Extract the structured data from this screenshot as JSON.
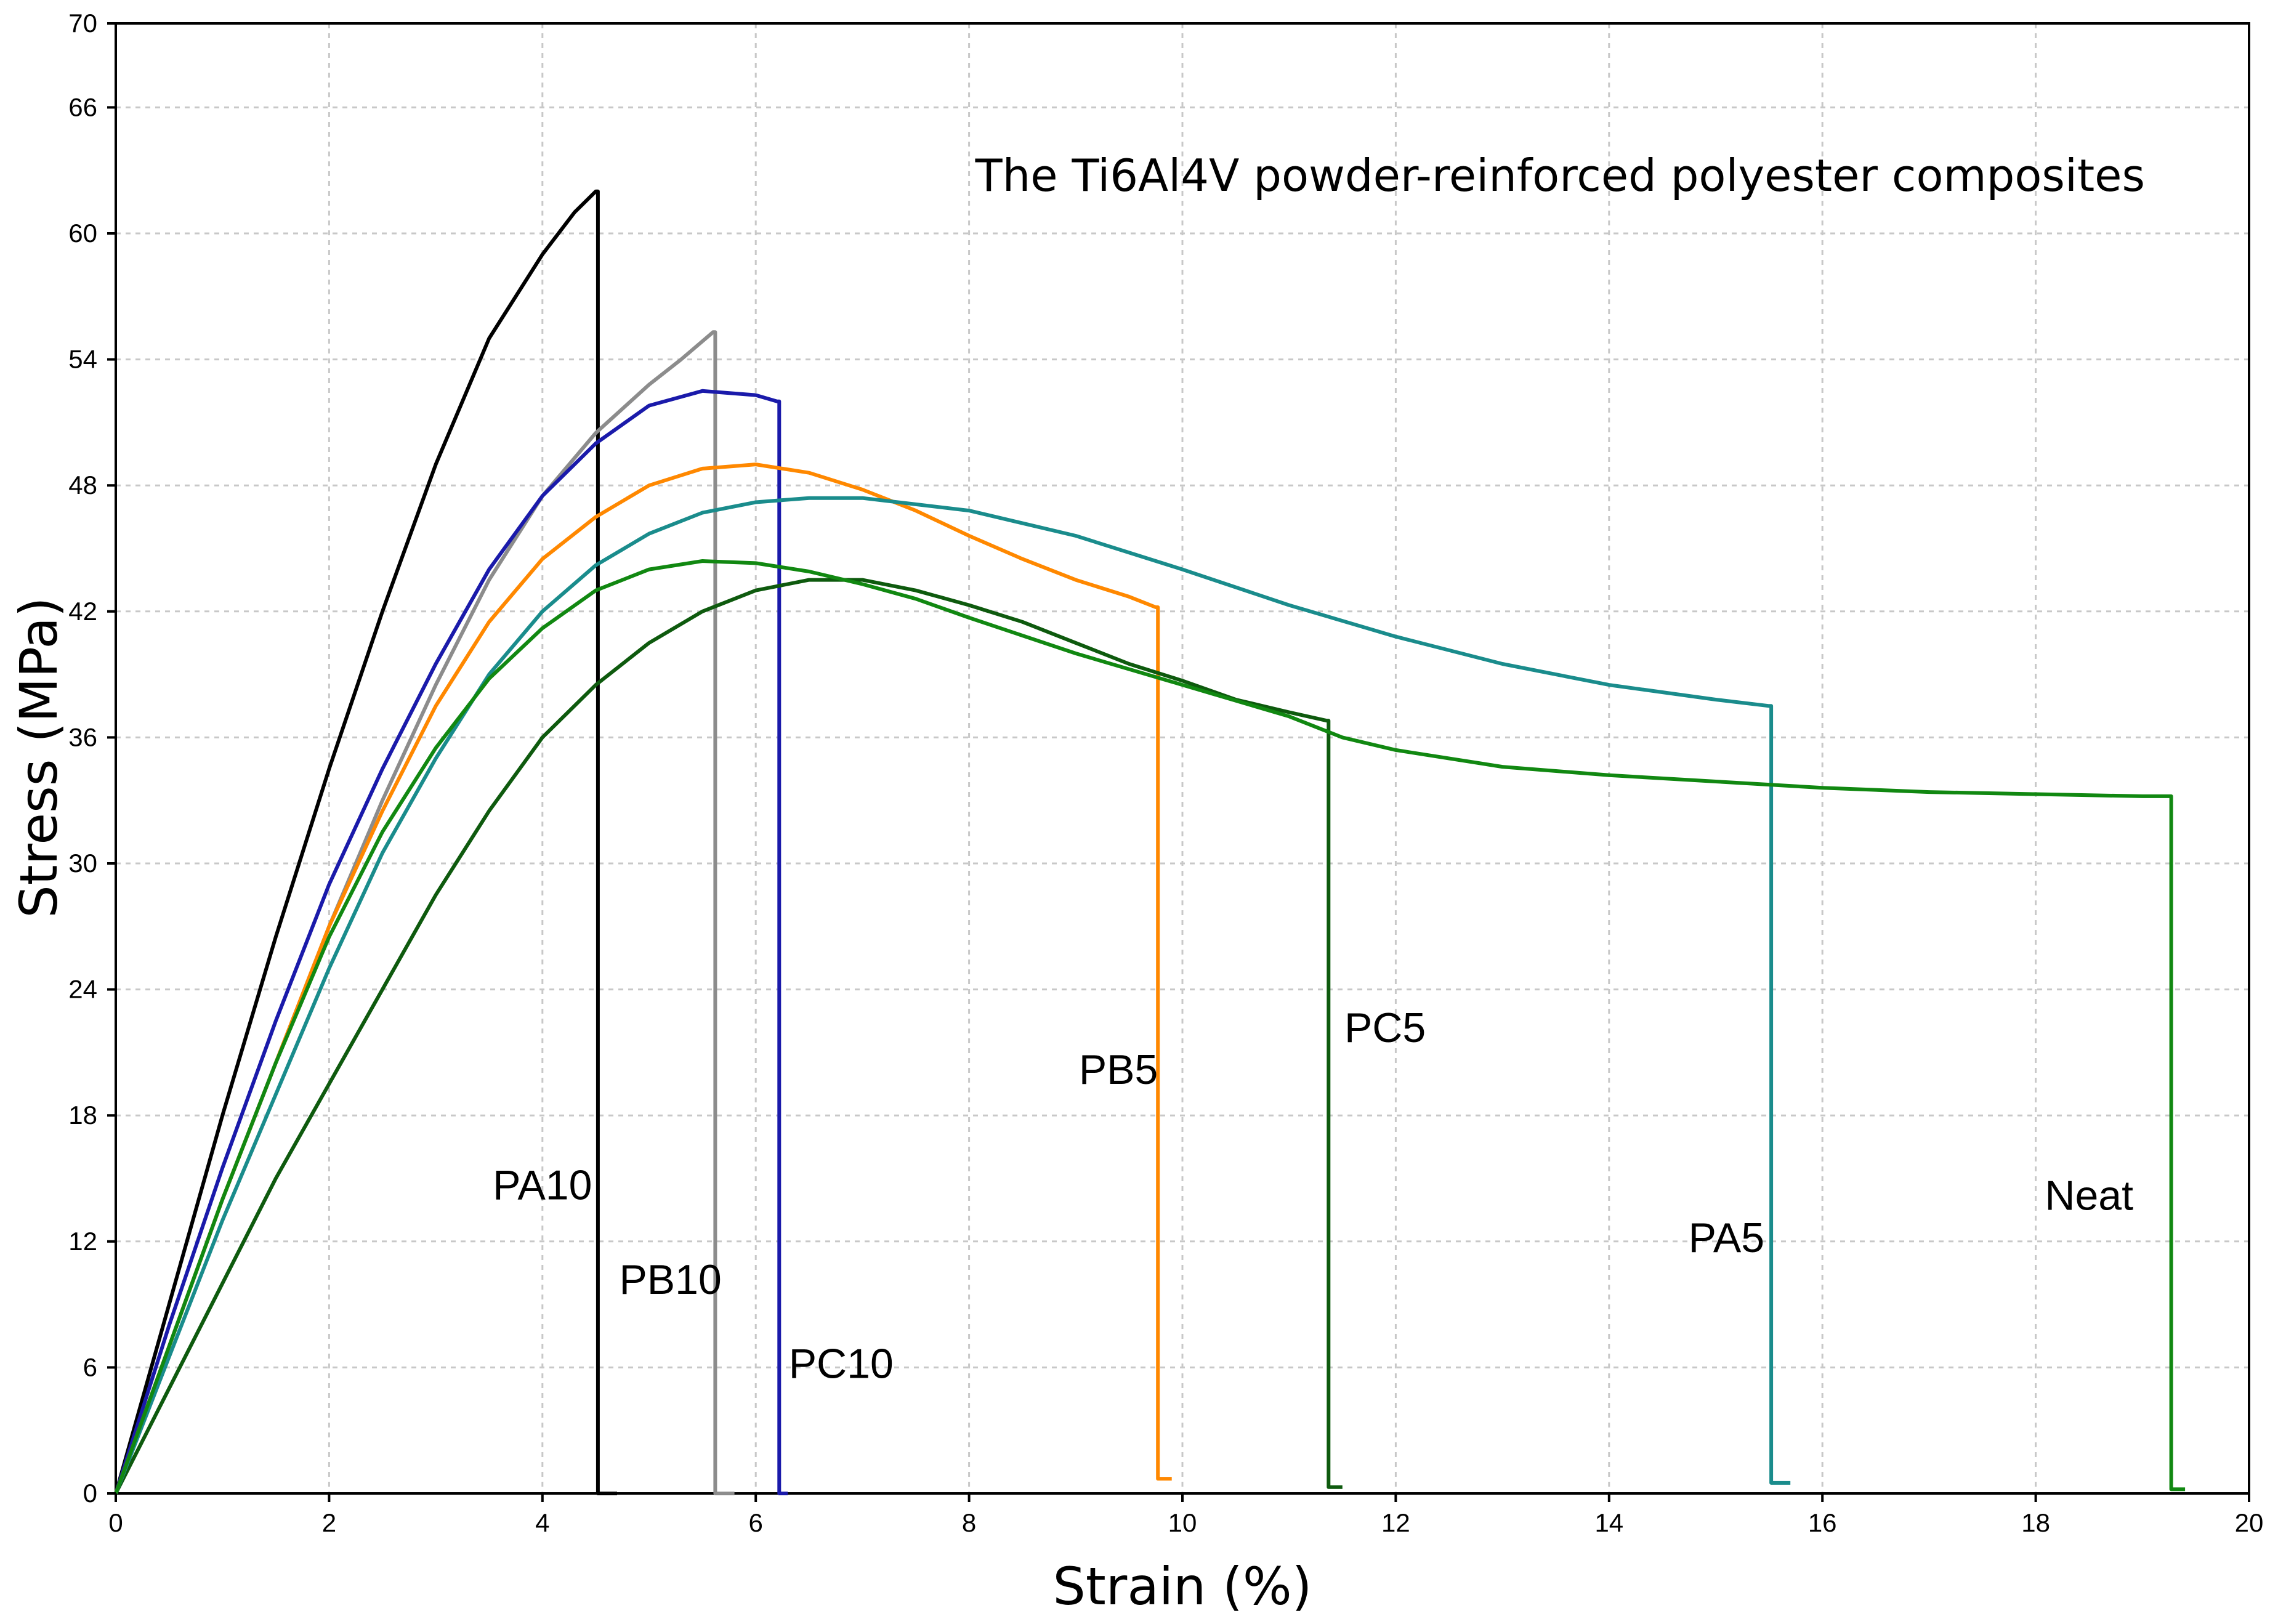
{
  "chart_data": {
    "type": "line",
    "title": "The Ti6Al4V powder-reinforced polyester composites",
    "xlabel": "Strain (%)",
    "ylabel": "Stress (MPa)",
    "xlim": [
      0,
      20
    ],
    "ylim": [
      0,
      70
    ],
    "x_ticks": [
      0,
      2,
      4,
      6,
      8,
      10,
      12,
      14,
      16,
      18,
      20
    ],
    "y_ticks": [
      0,
      6,
      12,
      18,
      24,
      30,
      36,
      42,
      48,
      54,
      60,
      66,
      70
    ],
    "grid": true,
    "series": [
      {
        "name": "PA10",
        "color": "#000000",
        "label_at": [
          4.0,
          14
        ],
        "x": [
          0,
          0.5,
          1,
          1.5,
          2,
          2.5,
          3,
          3.5,
          4,
          4.3,
          4.5,
          4.52,
          4.52,
          4.7
        ],
        "y": [
          0,
          9,
          18,
          26.5,
          34.5,
          42,
          49,
          55,
          59,
          61,
          62,
          62,
          0,
          0
        ]
      },
      {
        "name": "PB10",
        "color": "#8c8c8c",
        "label_at": [
          5.2,
          9.5
        ],
        "x": [
          0,
          0.5,
          1,
          1.5,
          2,
          2.5,
          3,
          3.5,
          4,
          4.5,
          5,
          5.3,
          5.6,
          5.62,
          5.62,
          5.8
        ],
        "y": [
          0,
          7,
          14,
          20.5,
          27,
          33,
          38.5,
          43.5,
          47.5,
          50.5,
          52.8,
          54,
          55.3,
          55.3,
          0,
          0
        ]
      },
      {
        "name": "PC10",
        "color": "#1a1aaa",
        "label_at": [
          6.8,
          5.5
        ],
        "x": [
          0,
          0.5,
          1,
          1.5,
          2,
          2.5,
          3,
          3.5,
          4,
          4.5,
          5,
          5.5,
          6,
          6.2,
          6.22,
          6.22,
          6.3
        ],
        "y": [
          0,
          8,
          15.5,
          22.5,
          29,
          34.5,
          39.5,
          44,
          47.5,
          50,
          51.8,
          52.5,
          52.3,
          52,
          52,
          0,
          0
        ]
      },
      {
        "name": "PB5",
        "color": "#ff8800",
        "label_at": [
          9.4,
          19.5
        ],
        "x": [
          0,
          0.5,
          1,
          1.5,
          2,
          2.5,
          3,
          3.5,
          4,
          4.5,
          5,
          5.5,
          6,
          6.5,
          7,
          7.5,
          8,
          8.5,
          9,
          9.5,
          9.75,
          9.77,
          9.77,
          9.9
        ],
        "y": [
          0,
          7,
          14,
          20.5,
          27,
          32.5,
          37.5,
          41.5,
          44.5,
          46.5,
          48,
          48.8,
          49,
          48.6,
          47.8,
          46.8,
          45.6,
          44.5,
          43.5,
          42.7,
          42.2,
          42.2,
          0.7,
          0.7
        ]
      },
      {
        "name": "PC5",
        "color": "#0e5a0e",
        "label_at": [
          11.9,
          21.5
        ],
        "x": [
          0,
          0.5,
          1,
          1.5,
          2,
          2.5,
          3,
          3.5,
          4,
          4.5,
          5,
          5.5,
          6,
          6.5,
          7,
          7.5,
          8,
          8.5,
          9,
          9.5,
          10,
          10.5,
          11,
          11.35,
          11.37,
          11.37,
          11.5
        ],
        "y": [
          0,
          5,
          10,
          15,
          19.5,
          24,
          28.5,
          32.5,
          36,
          38.5,
          40.5,
          42,
          43,
          43.5,
          43.5,
          43,
          42.3,
          41.5,
          40.5,
          39.5,
          38.7,
          37.8,
          37.2,
          36.8,
          36.8,
          0.3,
          0.3
        ]
      },
      {
        "name": "PA5",
        "color": "#1a8c8c",
        "label_at": [
          15.1,
          11.5
        ],
        "x": [
          0,
          0.5,
          1,
          1.5,
          2,
          2.5,
          3,
          3.5,
          4,
          4.5,
          5,
          5.5,
          6,
          6.5,
          7,
          7.5,
          8,
          9,
          10,
          11,
          12,
          13,
          14,
          15,
          15.5,
          15.52,
          15.52,
          15.7
        ],
        "y": [
          0,
          6.5,
          13,
          19,
          25,
          30.5,
          35,
          39,
          42,
          44.2,
          45.7,
          46.7,
          47.2,
          47.4,
          47.4,
          47.1,
          46.8,
          45.6,
          44,
          42.3,
          40.8,
          39.5,
          38.5,
          37.8,
          37.5,
          37.5,
          0.5,
          0.5
        ]
      },
      {
        "name": "Neat",
        "color": "#118811",
        "label_at": [
          18.5,
          13.5
        ],
        "x": [
          0,
          0.5,
          1,
          1.5,
          2,
          2.5,
          3,
          3.5,
          4,
          4.5,
          5,
          5.5,
          6,
          6.5,
          7,
          7.5,
          8,
          9,
          10,
          11,
          11.5,
          12,
          13,
          14,
          15,
          16,
          17,
          18,
          19,
          19.25,
          19.27,
          19.27,
          19.4
        ],
        "y": [
          0,
          7,
          14,
          20.5,
          26.5,
          31.5,
          35.5,
          38.8,
          41.2,
          43,
          44,
          44.4,
          44.3,
          43.9,
          43.3,
          42.6,
          41.7,
          40,
          38.5,
          37,
          36,
          35.4,
          34.6,
          34.2,
          33.9,
          33.6,
          33.4,
          33.3,
          33.2,
          33.2,
          33.2,
          0.2,
          0.2
        ]
      }
    ]
  }
}
